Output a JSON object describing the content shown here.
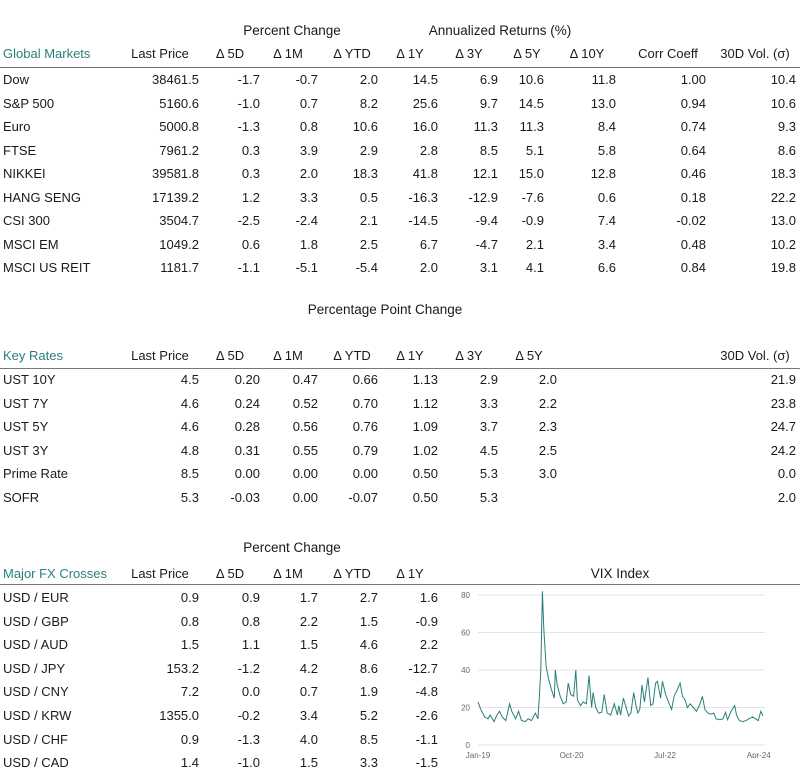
{
  "global": {
    "group_pct": "Percent Change",
    "group_ann": "Annualized Returns (%)",
    "headers": [
      "Global Markets",
      "Last Price",
      "Δ 5D",
      "Δ 1M",
      "Δ YTD",
      "Δ 1Y",
      "Δ 3Y",
      "Δ 5Y",
      "Δ 10Y",
      "Corr Coeff",
      "30D Vol. (σ)"
    ],
    "rows": [
      [
        "Dow",
        "38461.5",
        "-1.7",
        "-0.7",
        "2.0",
        "14.5",
        "6.9",
        "10.6",
        "11.8",
        "1.00",
        "10.4"
      ],
      [
        "S&P 500",
        "5160.6",
        "-1.0",
        "0.7",
        "8.2",
        "25.6",
        "9.7",
        "14.5",
        "13.0",
        "0.94",
        "10.6"
      ],
      [
        "Euro",
        "5000.8",
        "-1.3",
        "0.8",
        "10.6",
        "16.0",
        "11.3",
        "11.3",
        "8.4",
        "0.74",
        "9.3"
      ],
      [
        "FTSE",
        "7961.2",
        "0.3",
        "3.9",
        "2.9",
        "2.8",
        "8.5",
        "5.1",
        "5.8",
        "0.64",
        "8.6"
      ],
      [
        "NIKKEI",
        "39581.8",
        "0.3",
        "2.0",
        "18.3",
        "41.8",
        "12.1",
        "15.0",
        "12.8",
        "0.46",
        "18.3"
      ],
      [
        "HANG SENG",
        "17139.2",
        "1.2",
        "3.3",
        "0.5",
        "-16.3",
        "-12.9",
        "-7.6",
        "0.6",
        "0.18",
        "22.2"
      ],
      [
        "CSI 300",
        "3504.7",
        "-2.5",
        "-2.4",
        "2.1",
        "-14.5",
        "-9.4",
        "-0.9",
        "7.4",
        "-0.02",
        "13.0"
      ],
      [
        "MSCI EM",
        "1049.2",
        "0.6",
        "1.8",
        "2.5",
        "6.7",
        "-4.7",
        "2.1",
        "3.4",
        "0.48",
        "10.2"
      ],
      [
        "MSCI US REIT",
        "1181.7",
        "-1.1",
        "-5.1",
        "-5.4",
        "2.0",
        "3.1",
        "4.1",
        "6.6",
        "0.84",
        "19.8"
      ]
    ]
  },
  "rates": {
    "group_ppc": "Percentage Point Change",
    "headers": [
      "Key Rates",
      "Last Price",
      "Δ 5D",
      "Δ 1M",
      "Δ YTD",
      "Δ 1Y",
      "Δ 3Y",
      "Δ 5Y",
      "30D Vol. (σ)"
    ],
    "rows": [
      [
        "UST 10Y",
        "4.5",
        "0.20",
        "0.47",
        "0.66",
        "1.13",
        "2.9",
        "2.0",
        "21.9"
      ],
      [
        "UST 7Y",
        "4.6",
        "0.24",
        "0.52",
        "0.70",
        "1.12",
        "3.3",
        "2.2",
        "23.8"
      ],
      [
        "UST 5Y",
        "4.6",
        "0.28",
        "0.56",
        "0.76",
        "1.09",
        "3.7",
        "2.3",
        "24.7"
      ],
      [
        "UST 3Y",
        "4.8",
        "0.31",
        "0.55",
        "0.79",
        "1.02",
        "4.5",
        "2.5",
        "24.2"
      ],
      [
        "Prime Rate",
        "8.5",
        "0.00",
        "0.00",
        "0.00",
        "0.50",
        "5.3",
        "3.0",
        "0.0"
      ],
      [
        "SOFR",
        "5.3",
        "-0.03",
        "0.00",
        "-0.07",
        "0.50",
        "5.3",
        "",
        "2.0"
      ]
    ]
  },
  "fx": {
    "group_pct": "Percent Change",
    "headers": [
      "Major FX Crosses",
      "Last Price",
      "Δ 5D",
      "Δ 1M",
      "Δ YTD",
      "Δ 1Y"
    ],
    "rows": [
      [
        "USD / EUR",
        "0.9",
        "0.9",
        "1.7",
        "2.7",
        "1.6"
      ],
      [
        "USD / GBP",
        "0.8",
        "0.8",
        "2.2",
        "1.5",
        "-0.9"
      ],
      [
        "USD / AUD",
        "1.5",
        "1.1",
        "1.5",
        "4.6",
        "2.2"
      ],
      [
        "USD / JPY",
        "153.2",
        "-1.2",
        "4.2",
        "8.6",
        "-12.7"
      ],
      [
        "USD / CNY",
        "7.2",
        "0.0",
        "0.7",
        "1.9",
        "-4.8"
      ],
      [
        "USD / KRW",
        "1355.0",
        "-0.2",
        "3.4",
        "5.2",
        "-2.6"
      ],
      [
        "USD / CHF",
        "0.9",
        "-1.3",
        "4.0",
        "8.5",
        "-1.1"
      ],
      [
        "USD / CAD",
        "1.4",
        "-1.0",
        "1.5",
        "3.3",
        "-1.5"
      ]
    ]
  },
  "chart_data": {
    "type": "line",
    "title": "VIX Index",
    "xlabel": "",
    "ylabel": "",
    "ylim": [
      0,
      80
    ],
    "yticks": [
      "0",
      "20",
      "40",
      "60",
      "80"
    ],
    "xticks": [
      "Jan-19",
      "Oct-20",
      "Jul-22",
      "Apr-24"
    ],
    "xlim": [
      "2019-01-01",
      "2024-04-30"
    ],
    "grid": true,
    "line_color": "#2a7f7a",
    "series": [
      {
        "values": [
          [
            "2019-01-01",
            23
          ],
          [
            "2019-01-20",
            19
          ],
          [
            "2019-02-15",
            15
          ],
          [
            "2019-03-10",
            14
          ],
          [
            "2019-03-25",
            16
          ],
          [
            "2019-04-20",
            12.5
          ],
          [
            "2019-05-10",
            16
          ],
          [
            "2019-05-28",
            18
          ],
          [
            "2019-06-15",
            15
          ],
          [
            "2019-07-10",
            13
          ],
          [
            "2019-08-05",
            22
          ],
          [
            "2019-08-20",
            18
          ],
          [
            "2019-09-15",
            14
          ],
          [
            "2019-10-05",
            18
          ],
          [
            "2019-10-25",
            13
          ],
          [
            "2019-11-20",
            12.5
          ],
          [
            "2019-12-10",
            14
          ],
          [
            "2020-01-01",
            13
          ],
          [
            "2020-01-28",
            17
          ],
          [
            "2020-02-14",
            14
          ],
          [
            "2020-02-24",
            26
          ],
          [
            "2020-03-05",
            40
          ],
          [
            "2020-03-16",
            82
          ],
          [
            "2020-03-25",
            62
          ],
          [
            "2020-04-10",
            42
          ],
          [
            "2020-04-25",
            36
          ],
          [
            "2020-05-15",
            30
          ],
          [
            "2020-06-05",
            25
          ],
          [
            "2020-06-12",
            40
          ],
          [
            "2020-06-25",
            32
          ],
          [
            "2020-07-15",
            26
          ],
          [
            "2020-08-05",
            22
          ],
          [
            "2020-08-25",
            23
          ],
          [
            "2020-09-08",
            33
          ],
          [
            "2020-09-25",
            27
          ],
          [
            "2020-10-15",
            26
          ],
          [
            "2020-10-30",
            40
          ],
          [
            "2020-11-10",
            24
          ],
          [
            "2020-12-01",
            21
          ],
          [
            "2020-12-20",
            23
          ],
          [
            "2021-01-10",
            22
          ],
          [
            "2021-01-28",
            37
          ],
          [
            "2021-02-15",
            20
          ],
          [
            "2021-02-25",
            28
          ],
          [
            "2021-03-15",
            20
          ],
          [
            "2021-04-05",
            17
          ],
          [
            "2021-04-25",
            17.5
          ],
          [
            "2021-05-12",
            27
          ],
          [
            "2021-06-01",
            17
          ],
          [
            "2021-06-25",
            16
          ],
          [
            "2021-07-20",
            22
          ],
          [
            "2021-08-10",
            16
          ],
          [
            "2021-08-20",
            21
          ],
          [
            "2021-09-01",
            16
          ],
          [
            "2021-09-20",
            25
          ],
          [
            "2021-10-05",
            21
          ],
          [
            "2021-10-25",
            15.5
          ],
          [
            "2021-11-10",
            17
          ],
          [
            "2021-11-29",
            28
          ],
          [
            "2021-12-15",
            21
          ],
          [
            "2021-12-28",
            17
          ],
          [
            "2022-01-10",
            19
          ],
          [
            "2022-01-25",
            32
          ],
          [
            "2022-02-10",
            23
          ],
          [
            "2022-03-07",
            36
          ],
          [
            "2022-03-25",
            21
          ],
          [
            "2022-04-10",
            22
          ],
          [
            "2022-04-28",
            33
          ],
          [
            "2022-05-10",
            34
          ],
          [
            "2022-06-01",
            25
          ],
          [
            "2022-06-13",
            34
          ],
          [
            "2022-07-05",
            27
          ],
          [
            "2022-07-25",
            23
          ],
          [
            "2022-08-15",
            19
          ],
          [
            "2022-09-01",
            26
          ],
          [
            "2022-09-20",
            29
          ],
          [
            "2022-10-12",
            33
          ],
          [
            "2022-10-28",
            26
          ],
          [
            "2022-11-15",
            24
          ],
          [
            "2022-12-01",
            20
          ],
          [
            "2022-12-20",
            22
          ],
          [
            "2023-01-10",
            20
          ],
          [
            "2023-02-01",
            18
          ],
          [
            "2023-02-25",
            22
          ],
          [
            "2023-03-13",
            26
          ],
          [
            "2023-03-30",
            19
          ],
          [
            "2023-04-20",
            17
          ],
          [
            "2023-05-10",
            16.5
          ],
          [
            "2023-05-30",
            17
          ],
          [
            "2023-06-15",
            14
          ],
          [
            "2023-07-10",
            13.5
          ],
          [
            "2023-08-01",
            14
          ],
          [
            "2023-08-18",
            17.5
          ],
          [
            "2023-09-01",
            13.5
          ],
          [
            "2023-09-25",
            18
          ],
          [
            "2023-10-20",
            21
          ],
          [
            "2023-11-01",
            16
          ],
          [
            "2023-11-20",
            13
          ],
          [
            "2023-12-15",
            12.5
          ],
          [
            "2024-01-05",
            13
          ],
          [
            "2024-01-25",
            14
          ],
          [
            "2024-02-20",
            15
          ],
          [
            "2024-03-10",
            14
          ],
          [
            "2024-03-28",
            13
          ],
          [
            "2024-04-15",
            18
          ],
          [
            "2024-04-30",
            15.5
          ]
        ]
      }
    ]
  }
}
